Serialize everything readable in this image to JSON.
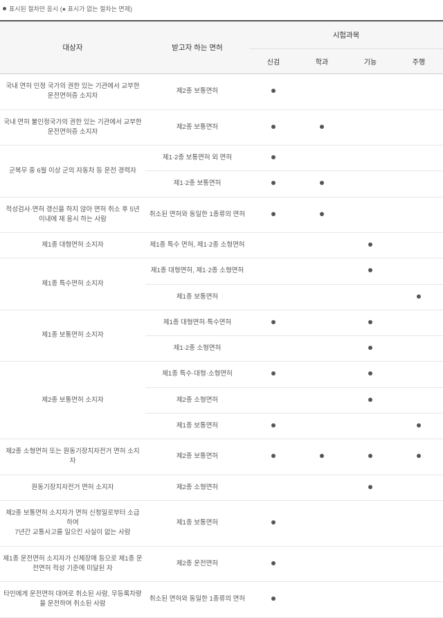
{
  "legend": "표시된 절차만 응시 (● 표시가 없는 절차는 면제)",
  "headers": {
    "subject": "대상자",
    "license": "받고자 하는 면허",
    "exams_group": "시험과목",
    "exams": [
      "신검",
      "학과",
      "기능",
      "주행"
    ]
  },
  "rows": [
    {
      "subject": "국내 면허 인정 국가의 권한 있는 기관에서 교부한 운전면허증 소지자",
      "license": "제2종 보통면허",
      "marks": [
        true,
        false,
        false,
        false
      ]
    },
    {
      "subject": "국내 면허 불인정국가의 권한 있는 기관에서 교부한 운전면허증 소지자",
      "license": "제2종 보통면허",
      "marks": [
        true,
        true,
        false,
        false
      ]
    },
    {
      "subject": "군복무 중 6월 이상 군의 자동차 등 운전 경력자",
      "rowspan": 2,
      "license": "제1·2종 보통면허 외 면허",
      "marks": [
        true,
        false,
        false,
        false
      ]
    },
    {
      "license": "제1·2종 보통면허",
      "marks": [
        true,
        true,
        false,
        false
      ]
    },
    {
      "subject": "적성검사·면허 갱신을 하지 않아 면허 취소 후 5년 이내에 재 응시 하는 사람",
      "license": "취소된 면허와 동일한 1종류의 면허",
      "marks": [
        true,
        true,
        false,
        false
      ]
    },
    {
      "subject": "제1종 대형면허 소지자",
      "license": "제1종 특수 면허, 제1·2종 소형면허",
      "marks": [
        false,
        false,
        true,
        false
      ]
    },
    {
      "subject": "제1종 특수면허 소지자",
      "rowspan": 2,
      "license": "제1종 대형면허, 제1·2종 소형면허",
      "marks": [
        false,
        false,
        true,
        false
      ]
    },
    {
      "license": "제1종 보통면허",
      "marks": [
        false,
        false,
        false,
        true
      ]
    },
    {
      "subject": "제1종 보통면허 소지자",
      "rowspan": 2,
      "license": "제1종 대형면허·특수면허",
      "marks": [
        true,
        false,
        true,
        false
      ]
    },
    {
      "license": "제1·2종 소형면허",
      "marks": [
        false,
        false,
        true,
        false
      ]
    },
    {
      "subject": "제2종 보통면허 소지자",
      "rowspan": 3,
      "license": "제1종 특수·대형·소형면허",
      "marks": [
        true,
        false,
        true,
        false
      ]
    },
    {
      "license": "제2종 소형면허",
      "marks": [
        false,
        false,
        true,
        false
      ]
    },
    {
      "license": "제1종 보통면허",
      "marks": [
        true,
        false,
        false,
        true
      ]
    },
    {
      "subject": "제2종 소형면허 또는 원동기장치자전거 면허 소지자",
      "license": "제2종 보통면허",
      "marks": [
        true,
        true,
        true,
        true
      ]
    },
    {
      "subject": "원동기장치자전거 면허 소지자",
      "license": "제2종 소형면허",
      "marks": [
        false,
        false,
        true,
        false
      ]
    },
    {
      "subject": "제2종 보통면허 소지자가 면허 신청일로부터 소급하여\n7년간 교통사고를 일으킨 사실이 없는 사람",
      "license": "제1종 보통면허",
      "marks": [
        true,
        false,
        false,
        false
      ]
    },
    {
      "subject": "제1종 운전면허 소지자가 신체장애 등으로 제1종 운전면허 적성 기준에 미달된 자",
      "license": "제2종 운전면허",
      "marks": [
        true,
        false,
        false,
        false
      ]
    },
    {
      "subject": "타인에게 운전면허 대여로 취소된 사람, 무등록차량을 운전하여 취소된 사람",
      "license": "취소된 면허와 동일한 1종류의 면허",
      "marks": [
        true,
        false,
        false,
        false
      ]
    }
  ],
  "colors": {
    "dot": "#555555",
    "header_bg": "#f6f6f6",
    "border_top": "#555555",
    "row_border": "#e6e6e6"
  }
}
